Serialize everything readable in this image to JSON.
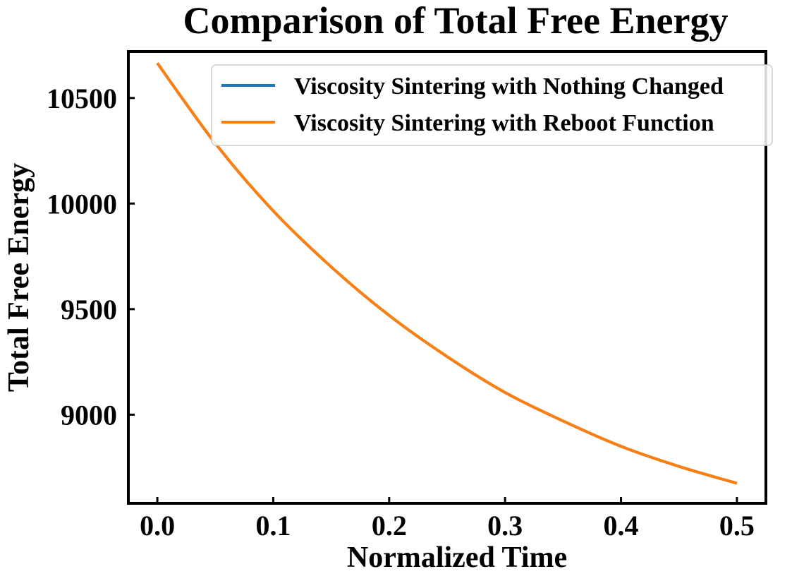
{
  "chart_data": {
    "type": "line",
    "title": "Comparison of Total Free Energy",
    "xlabel": "Normalized Time",
    "ylabel": "Total Free Energy",
    "xlim": [
      -0.025,
      0.525
    ],
    "ylim": [
      8580,
      10720
    ],
    "xticks": [
      0.0,
      0.1,
      0.2,
      0.3,
      0.4,
      0.5
    ],
    "xtick_labels": [
      "0.0",
      "0.1",
      "0.2",
      "0.3",
      "0.4",
      "0.5"
    ],
    "yticks": [
      9000,
      9500,
      10000,
      10500
    ],
    "ytick_labels": [
      "9000",
      "9500",
      "10000",
      "10500"
    ],
    "grid": false,
    "legend_position": "top-right",
    "x": [
      0.0,
      0.05,
      0.1,
      0.15,
      0.2,
      0.25,
      0.3,
      0.35,
      0.4,
      0.45,
      0.5
    ],
    "series": [
      {
        "name": "Viscosity Sintering with Nothing Changed",
        "color": "#1f77b4",
        "values": [
          10665,
          10285,
          9965,
          9700,
          9470,
          9275,
          9105,
          8970,
          8850,
          8755,
          8675
        ]
      },
      {
        "name": "Viscosity Sintering with Reboot Function",
        "color": "#ff7f0e",
        "values": [
          10665,
          10285,
          9965,
          9700,
          9470,
          9275,
          9105,
          8970,
          8850,
          8755,
          8675
        ]
      }
    ]
  }
}
